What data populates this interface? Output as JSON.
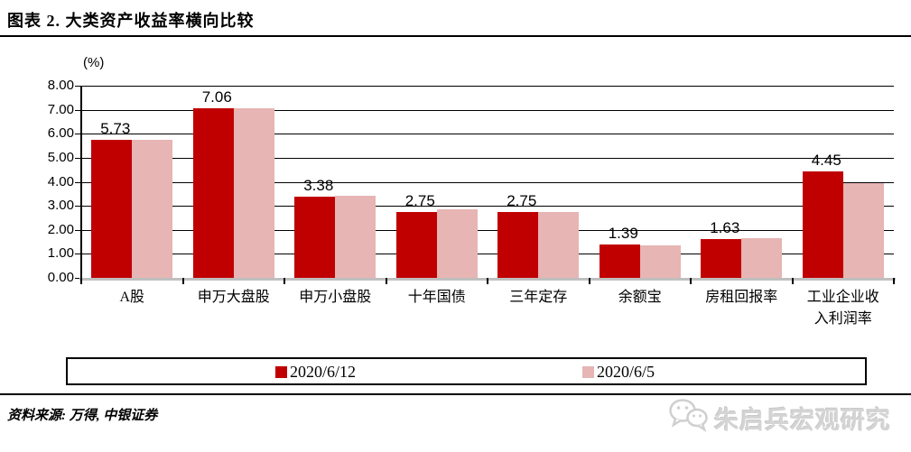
{
  "header": {
    "title": "图表 2. 大类资产收益率横向比较"
  },
  "chart_data": {
    "type": "bar",
    "title": "大类资产收益率横向比较",
    "unit_label": "(%)",
    "categories": [
      "A股",
      "申万大盘股",
      "申万小盘股",
      "十年国债",
      "三年定存",
      "余额宝",
      "房租回报率",
      "工业企业收入利润率"
    ],
    "series": [
      {
        "name": "2020/6/12",
        "color": "#C00000",
        "values": [
          5.73,
          7.06,
          3.38,
          2.75,
          2.75,
          1.39,
          1.63,
          4.45
        ],
        "data_labels": [
          "5.73",
          "7.06",
          "3.38",
          "2.75",
          "2.75",
          "1.39",
          "1.63",
          "4.45"
        ]
      },
      {
        "name": "2020/6/5",
        "color": "#E6B5B4",
        "values": [
          5.73,
          7.06,
          3.4,
          2.85,
          2.75,
          1.35,
          1.65,
          3.95
        ],
        "data_labels": []
      }
    ],
    "ylim": [
      0,
      8
    ],
    "ytick_step": 1,
    "ytick_labels": [
      "0.00",
      "1.00",
      "2.00",
      "3.00",
      "4.00",
      "5.00",
      "6.00",
      "7.00",
      "8.00"
    ],
    "grid": true,
    "legend_position": "bottom",
    "axis_color": "#000000",
    "baseline_color": "#BFBFBF"
  },
  "footer": {
    "source": "资料来源: 万得, 中银证券"
  },
  "watermark": {
    "icon": "wechat-icon",
    "text": "朱启兵宏观研究"
  }
}
